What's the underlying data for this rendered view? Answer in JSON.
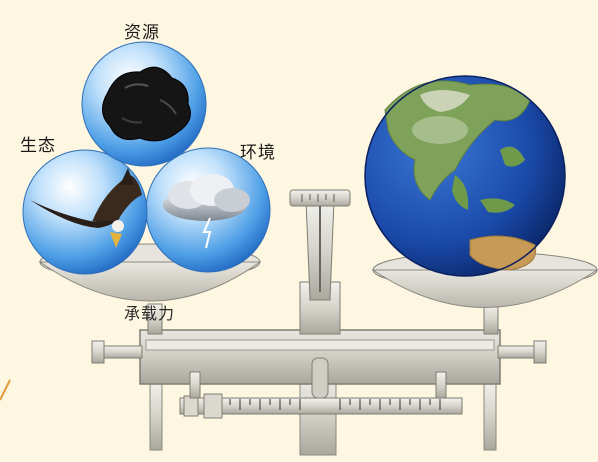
{
  "labels": {
    "resource": "资源",
    "ecology": "生态",
    "environment": "环境",
    "capacity": "承载力"
  },
  "colors": {
    "background": "#fdf6e0",
    "sphere": "#5aa8ea",
    "earth_ocean": "#1f4fb0",
    "earth_land": "#6e9a4a",
    "balance_body": "#d8d6cc"
  },
  "icons": {
    "resource_sphere": "coal-lump-icon",
    "ecology_sphere": "eagle-icon",
    "environment_sphere": "storm-cloud-icon",
    "earth": "earth-globe-icon"
  }
}
